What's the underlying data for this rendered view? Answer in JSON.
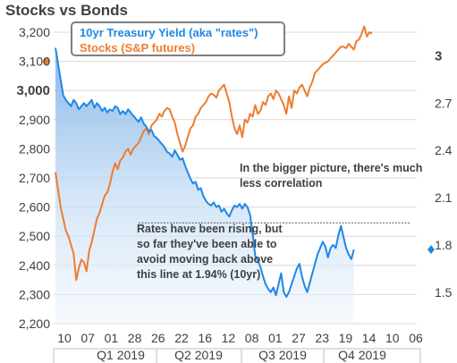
{
  "title": "Stocks vs Bonds",
  "legend": {
    "rates": "10yr Treasury Yield (aka \"rates\")",
    "stocks": "Stocks (S&P futures)"
  },
  "annotations": {
    "bigger_picture": "In the bigger picture, there's much less correlation",
    "rates_note": "Rates have been rising, but so far they've been able to avoid moving back above this line at 1.94% (10yr)"
  },
  "colors": {
    "rates": "#1e88e5",
    "stocks": "#ed7d31",
    "grid": "#d9d9d9",
    "text": "#404040"
  },
  "chart_data": {
    "type": "line",
    "title": "Stocks vs Bonds",
    "grid": true,
    "legend_position": "top-left",
    "x_tick_labels": [
      "10",
      "07",
      "01",
      "28",
      "26",
      "22",
      "16",
      "12",
      "08",
      "01",
      "27",
      "23",
      "19",
      "14",
      "10",
      "06"
    ],
    "quarter_labels": [
      "Q1 2019",
      "Q2 2019",
      "Q3 2019",
      "Q4 2019"
    ],
    "left_axis": {
      "ticks": [
        "3,200",
        "3,100",
        "3,000",
        "2,900",
        "2,800",
        "2,700",
        "2,600",
        "2,500",
        "2,400",
        "2,300",
        "2,200"
      ],
      "ylim": [
        2200,
        3200
      ],
      "highlight_label": "3,000"
    },
    "right_axis": {
      "ticks": [
        "3",
        "2.7",
        "2.4",
        "2.1",
        "1.8",
        "1.5"
      ],
      "ylim": [
        1.3,
        3.15
      ],
      "highlight_label": "3"
    },
    "reference_line": {
      "axis": "right",
      "value": 1.94
    },
    "series": [
      {
        "name": "10yr Treasury Yield (aka \"rates\")",
        "axis": "right",
        "values": [
          3.05,
          2.95,
          2.85,
          2.75,
          2.72,
          2.7,
          2.68,
          2.72,
          2.7,
          2.66,
          2.68,
          2.7,
          2.68,
          2.7,
          2.72,
          2.67,
          2.7,
          2.68,
          2.65,
          2.67,
          2.64,
          2.66,
          2.65,
          2.68,
          2.67,
          2.63,
          2.65,
          2.63,
          2.66,
          2.64,
          2.62,
          2.6,
          2.58,
          2.61,
          2.57,
          2.55,
          2.52,
          2.53,
          2.49,
          2.48,
          2.46,
          2.44,
          2.42,
          2.39,
          2.38,
          2.36,
          2.4,
          2.37,
          2.34,
          2.35,
          2.3,
          2.26,
          2.22,
          2.19,
          2.2,
          2.15,
          2.16,
          2.11,
          2.08,
          2.06,
          2.05,
          2.07,
          2.04,
          2.05,
          2.01,
          2.03,
          2.0,
          1.98,
          2.02,
          2.05,
          2.04,
          2.06,
          2.03,
          2.06,
          2.04,
          1.99,
          1.87,
          1.73,
          1.7,
          1.66,
          1.6,
          1.55,
          1.52,
          1.5,
          1.53,
          1.48,
          1.55,
          1.62,
          1.5,
          1.47,
          1.5,
          1.55,
          1.6,
          1.65,
          1.68,
          1.6,
          1.54,
          1.5,
          1.56,
          1.62,
          1.68,
          1.74,
          1.78,
          1.82,
          1.79,
          1.72,
          1.78,
          1.8,
          1.78,
          1.86,
          1.92,
          1.85,
          1.78,
          1.74,
          1.71,
          1.77,
          null,
          null,
          null,
          null,
          null,
          null,
          null
        ]
      },
      {
        "name": "Stocks (S&P futures)",
        "axis": "left",
        "values": [
          2720,
          2660,
          2600,
          2560,
          2520,
          2500,
          2470,
          2440,
          2350,
          2390,
          2420,
          2410,
          2380,
          2450,
          2480,
          2520,
          2560,
          2580,
          2610,
          2640,
          2650,
          2680,
          2720,
          2750,
          2730,
          2760,
          2770,
          2790,
          2800,
          2780,
          2800,
          2810,
          2820,
          2840,
          2860,
          2870,
          2850,
          2880,
          2890,
          2900,
          2920,
          2910,
          2930,
          2940,
          2935,
          2910,
          2890,
          2850,
          2820,
          2790,
          2810,
          2840,
          2870,
          2880,
          2910,
          2920,
          2940,
          2950,
          2960,
          2980,
          2990,
          2985,
          2975,
          3000,
          3010,
          3020,
          2990,
          2960,
          2910,
          2870,
          2850,
          2880,
          2840,
          2900,
          2890,
          2920,
          2910,
          2950,
          2920,
          2930,
          2960,
          2950,
          2980,
          2990,
          2970,
          3000,
          2990,
          2970,
          2950,
          2920,
          2980,
          2940,
          3000,
          2990,
          3010,
          3020,
          3000,
          2980,
          3010,
          3030,
          3060,
          3070,
          3080,
          3090,
          3095,
          3100,
          3110,
          3120,
          3130,
          3140,
          3150,
          3150,
          3145,
          3160,
          3150,
          3140,
          3170,
          3175,
          3195,
          3220,
          3185,
          3200,
          3195
        ]
      }
    ]
  }
}
